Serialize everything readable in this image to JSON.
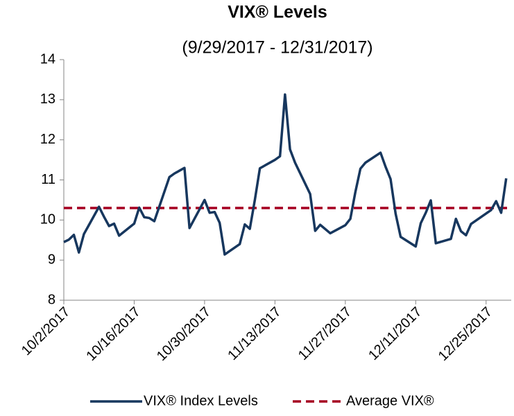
{
  "chart_data": {
    "type": "line",
    "title": "VIX® Levels",
    "subtitle": "(9/29/2017 - 12/31/2017)",
    "x": [
      "10/2/2017",
      "10/3/2017",
      "10/4/2017",
      "10/5/2017",
      "10/6/2017",
      "10/9/2017",
      "10/10/2017",
      "10/11/2017",
      "10/12/2017",
      "10/13/2017",
      "10/16/2017",
      "10/17/2017",
      "10/18/2017",
      "10/19/2017",
      "10/20/2017",
      "10/23/2017",
      "10/24/2017",
      "10/25/2017",
      "10/26/2017",
      "10/27/2017",
      "10/30/2017",
      "10/31/2017",
      "11/1/2017",
      "11/2/2017",
      "11/3/2017",
      "11/6/2017",
      "11/7/2017",
      "11/8/2017",
      "11/9/2017",
      "11/10/2017",
      "11/13/2017",
      "11/14/2017",
      "11/15/2017",
      "11/16/2017",
      "11/17/2017",
      "11/20/2017",
      "11/21/2017",
      "11/22/2017",
      "11/24/2017",
      "11/27/2017",
      "11/28/2017",
      "11/29/2017",
      "11/30/2017",
      "12/1/2017",
      "12/4/2017",
      "12/5/2017",
      "12/6/2017",
      "12/7/2017",
      "12/8/2017",
      "12/11/2017",
      "12/12/2017",
      "12/13/2017",
      "12/14/2017",
      "12/15/2017",
      "12/18/2017",
      "12/19/2017",
      "12/20/2017",
      "12/21/2017",
      "12/22/2017",
      "12/26/2017",
      "12/27/2017",
      "12/28/2017",
      "12/29/2017"
    ],
    "series": [
      {
        "name": "VIX® Index Levels",
        "color": "#17375e",
        "values": [
          9.45,
          9.51,
          9.63,
          9.19,
          9.65,
          10.33,
          10.08,
          9.85,
          9.91,
          9.61,
          9.91,
          10.31,
          10.07,
          10.05,
          9.97,
          11.07,
          11.16,
          11.23,
          11.3,
          9.8,
          10.5,
          10.18,
          10.2,
          9.93,
          9.14,
          9.4,
          9.89,
          9.78,
          10.5,
          11.29,
          11.5,
          11.59,
          13.13,
          11.76,
          11.43,
          10.65,
          9.73,
          9.88,
          9.67,
          9.87,
          10.03,
          10.7,
          11.28,
          11.43,
          11.68,
          11.33,
          11.02,
          10.16,
          9.58,
          9.34,
          9.92,
          10.18,
          10.49,
          9.42,
          9.53,
          10.03,
          9.72,
          9.62,
          9.9,
          10.25,
          10.47,
          10.18,
          11.04
        ]
      }
    ],
    "reference_lines": [
      {
        "name": "Average VIX®",
        "value": 10.3,
        "color": "#a50021",
        "style": "dashed"
      }
    ],
    "xlim": [
      "10/2/2017",
      "12/30/2017"
    ],
    "xticks": [
      "10/2/2017",
      "10/16/2017",
      "10/30/2017",
      "11/13/2017",
      "11/27/2017",
      "12/11/2017",
      "12/25/2017"
    ],
    "ylim": [
      8,
      14
    ],
    "yticks": [
      8,
      9,
      10,
      11,
      12,
      13,
      14
    ],
    "legend": "bottom"
  }
}
